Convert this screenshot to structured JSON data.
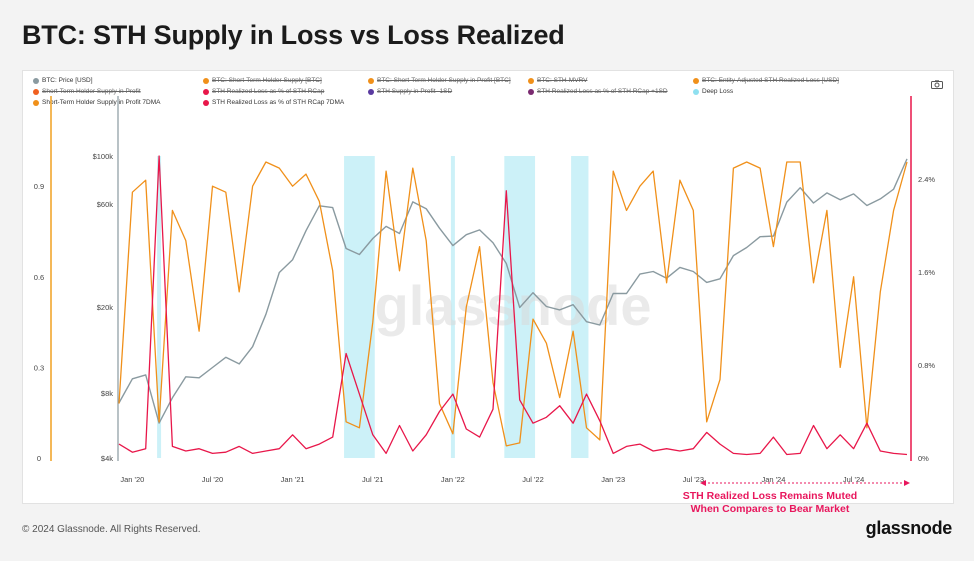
{
  "page": {
    "title": "BTC: STH Supply in Loss vs Loss Realized"
  },
  "footer": {
    "copyright": "© 2024 Glassnode. All Rights Reserved.",
    "brand": "glassnode"
  },
  "watermark": "glassnode",
  "annotation": {
    "line1": "STH Realized Loss Remains Muted",
    "line2": "When Compares to Bear Market"
  },
  "colors": {
    "price": "#8a9aa0",
    "supply": "#f0901a",
    "loss": "#e8174a",
    "deep_loss": "#8fe0f0",
    "axis_left": "#f0a020",
    "axis_right": "#e8174a"
  },
  "icons": {
    "toolbar": "camera-icon"
  },
  "legend": [
    {
      "label": "BTC: Price [USD]",
      "color": "#8a9aa0",
      "enabled": true
    },
    {
      "label": "BTC: Short-Term Holder Supply [BTC]",
      "color": "#f0901a",
      "enabled": false
    },
    {
      "label": "BTC: Short-Term Holder Supply in Profit [BTC]",
      "color": "#f0901a",
      "enabled": false
    },
    {
      "label": "BTC: STH-MVRV",
      "color": "#f0901a",
      "enabled": false
    },
    {
      "label": "BTC: Entity-Adjusted STH Realized Loss [USD]",
      "color": "#f0901a",
      "enabled": false
    },
    {
      "label": "Short-Term Holder Supply in Profit",
      "color": "#f06020",
      "enabled": false
    },
    {
      "label": "STH Realized Loss as % of STH RCap",
      "color": "#e8174a",
      "enabled": false
    },
    {
      "label": "STH Supply in Profit -1SD",
      "color": "#5a3aa0",
      "enabled": false
    },
    {
      "label": "STH Realized Loss as % of STH RCap +1SD",
      "color": "#7a2a70",
      "enabled": false
    },
    {
      "label": "Deep Loss",
      "color": "#8fe0f0",
      "enabled": true
    },
    {
      "label": "Short-Term Holder Supply in Profit 7DMA",
      "color": "#f0901a",
      "enabled": true
    },
    {
      "label": "STH Realized Loss as % of STH RCap 7DMA",
      "color": "#e8174a",
      "enabled": true
    }
  ],
  "chart_data": {
    "type": "line",
    "x_ticks": [
      "Jan '20",
      "Jul '20",
      "Jan '21",
      "Jul '21",
      "Jan '22",
      "Jul '22",
      "Jan '23",
      "Jul '23",
      "Jan '24",
      "Jul '24"
    ],
    "x_range": [
      "2019-12",
      "2024-11"
    ],
    "y_left": {
      "ticks": [
        "0",
        "0.3",
        "0.6",
        "0.9"
      ],
      "range": [
        0,
        1
      ]
    },
    "y_price": {
      "ticks": [
        "$4k",
        "$8k",
        "$20k",
        "$60k",
        "$100k"
      ],
      "scale": "log",
      "range": [
        4000,
        100000
      ]
    },
    "y_right": {
      "ticks": [
        "0%",
        "0.8%",
        "1.6%",
        "2.4%"
      ],
      "range": [
        0,
        2.6
      ]
    },
    "series": [
      {
        "name": "BTC: Price [USD]",
        "x": [
          "2019-12",
          "2020-01",
          "2020-02",
          "2020-03",
          "2020-04",
          "2020-05",
          "2020-06",
          "2020-07",
          "2020-08",
          "2020-09",
          "2020-10",
          "2020-11",
          "2020-12",
          "2021-01",
          "2021-02",
          "2021-03",
          "2021-04",
          "2021-05",
          "2021-06",
          "2021-07",
          "2021-08",
          "2021-09",
          "2021-10",
          "2021-11",
          "2021-12",
          "2022-01",
          "2022-02",
          "2022-03",
          "2022-04",
          "2022-05",
          "2022-06",
          "2022-07",
          "2022-08",
          "2022-09",
          "2022-10",
          "2022-11",
          "2022-12",
          "2023-01",
          "2023-02",
          "2023-03",
          "2023-04",
          "2023-05",
          "2023-06",
          "2023-07",
          "2023-08",
          "2023-09",
          "2023-10",
          "2023-11",
          "2023-12",
          "2024-01",
          "2024-02",
          "2024-03",
          "2024-04",
          "2024-05",
          "2024-06",
          "2024-07",
          "2024-08",
          "2024-09",
          "2024-10",
          "2024-11"
        ],
        "values": [
          7200,
          9300,
          9700,
          5800,
          7600,
          9500,
          9400,
          10500,
          11700,
          10900,
          13100,
          18500,
          28900,
          33100,
          45100,
          58800,
          57700,
          37300,
          35000,
          41500,
          47200,
          43800,
          61300,
          57000,
          46300,
          38500,
          43200,
          45500,
          39700,
          31800,
          19900,
          23300,
          20100,
          19400,
          20500,
          17100,
          16500,
          23100,
          23100,
          28400,
          29200,
          27200,
          30500,
          29200,
          26000,
          27000,
          34600,
          37700,
          42300,
          42600,
          61200,
          71300,
          60600,
          67500,
          62700,
          66800,
          59000,
          63300,
          70200,
          97000
        ]
      },
      {
        "name": "Short-Term Holder Supply in Profit 7DMA",
        "x": [
          "2019-12",
          "2020-01",
          "2020-02",
          "2020-03",
          "2020-04",
          "2020-05",
          "2020-06",
          "2020-07",
          "2020-08",
          "2020-09",
          "2020-10",
          "2020-11",
          "2020-12",
          "2021-01",
          "2021-02",
          "2021-03",
          "2021-04",
          "2021-05",
          "2021-06",
          "2021-07",
          "2021-08",
          "2021-09",
          "2021-10",
          "2021-11",
          "2021-12",
          "2022-01",
          "2022-02",
          "2022-03",
          "2022-04",
          "2022-05",
          "2022-06",
          "2022-07",
          "2022-08",
          "2022-09",
          "2022-10",
          "2022-11",
          "2022-12",
          "2023-01",
          "2023-02",
          "2023-03",
          "2023-04",
          "2023-05",
          "2023-06",
          "2023-07",
          "2023-08",
          "2023-09",
          "2023-10",
          "2023-11",
          "2023-12",
          "2024-01",
          "2024-02",
          "2024-03",
          "2024-04",
          "2024-05",
          "2024-06",
          "2024-07",
          "2024-08",
          "2024-09",
          "2024-10",
          "2024-11"
        ],
        "values": [
          0.18,
          0.88,
          0.92,
          0.12,
          0.82,
          0.72,
          0.42,
          0.9,
          0.88,
          0.55,
          0.9,
          0.98,
          0.96,
          0.9,
          0.94,
          0.85,
          0.62,
          0.12,
          0.1,
          0.45,
          0.95,
          0.62,
          0.96,
          0.72,
          0.18,
          0.08,
          0.5,
          0.7,
          0.25,
          0.04,
          0.05,
          0.46,
          0.38,
          0.2,
          0.42,
          0.1,
          0.06,
          0.95,
          0.82,
          0.9,
          0.95,
          0.58,
          0.92,
          0.82,
          0.12,
          0.26,
          0.96,
          0.98,
          0.96,
          0.7,
          0.98,
          0.98,
          0.58,
          0.82,
          0.3,
          0.6,
          0.1,
          0.55,
          0.82,
          0.98
        ]
      },
      {
        "name": "STH Realized Loss as % of STH RCap 7DMA",
        "x": [
          "2019-12",
          "2020-01",
          "2020-02",
          "2020-03",
          "2020-04",
          "2020-05",
          "2020-06",
          "2020-07",
          "2020-08",
          "2020-09",
          "2020-10",
          "2020-11",
          "2020-12",
          "2021-01",
          "2021-02",
          "2021-03",
          "2021-04",
          "2021-05",
          "2021-06",
          "2021-07",
          "2021-08",
          "2021-09",
          "2021-10",
          "2021-11",
          "2021-12",
          "2022-01",
          "2022-02",
          "2022-03",
          "2022-04",
          "2022-05",
          "2022-06",
          "2022-07",
          "2022-08",
          "2022-09",
          "2022-10",
          "2022-11",
          "2022-12",
          "2023-01",
          "2023-02",
          "2023-03",
          "2023-04",
          "2023-05",
          "2023-06",
          "2023-07",
          "2023-08",
          "2023-09",
          "2023-10",
          "2023-11",
          "2023-12",
          "2024-01",
          "2024-02",
          "2024-03",
          "2024-04",
          "2024-05",
          "2024-06",
          "2024-07",
          "2024-08",
          "2024-09",
          "2024-10",
          "2024-11"
        ],
        "values": [
          0.12,
          0.05,
          0.08,
          2.6,
          0.1,
          0.06,
          0.08,
          0.04,
          0.05,
          0.1,
          0.04,
          0.06,
          0.08,
          0.2,
          0.08,
          0.12,
          0.18,
          0.9,
          0.55,
          0.2,
          0.04,
          0.28,
          0.06,
          0.2,
          0.4,
          0.55,
          0.25,
          0.18,
          0.42,
          2.3,
          0.5,
          0.3,
          0.35,
          0.45,
          0.3,
          0.55,
          0.32,
          0.04,
          0.1,
          0.12,
          0.06,
          0.08,
          0.06,
          0.08,
          0.22,
          0.12,
          0.04,
          0.03,
          0.04,
          0.18,
          0.03,
          0.04,
          0.28,
          0.08,
          0.2,
          0.08,
          0.3,
          0.06,
          0.04,
          0.03
        ]
      }
    ],
    "deep_loss_periods": [
      [
        "2020-03",
        "2020-03"
      ],
      [
        "2021-05",
        "2021-07"
      ],
      [
        "2022-01",
        "2022-01"
      ],
      [
        "2022-05",
        "2022-07"
      ],
      [
        "2022-10",
        "2022-11"
      ]
    ]
  }
}
